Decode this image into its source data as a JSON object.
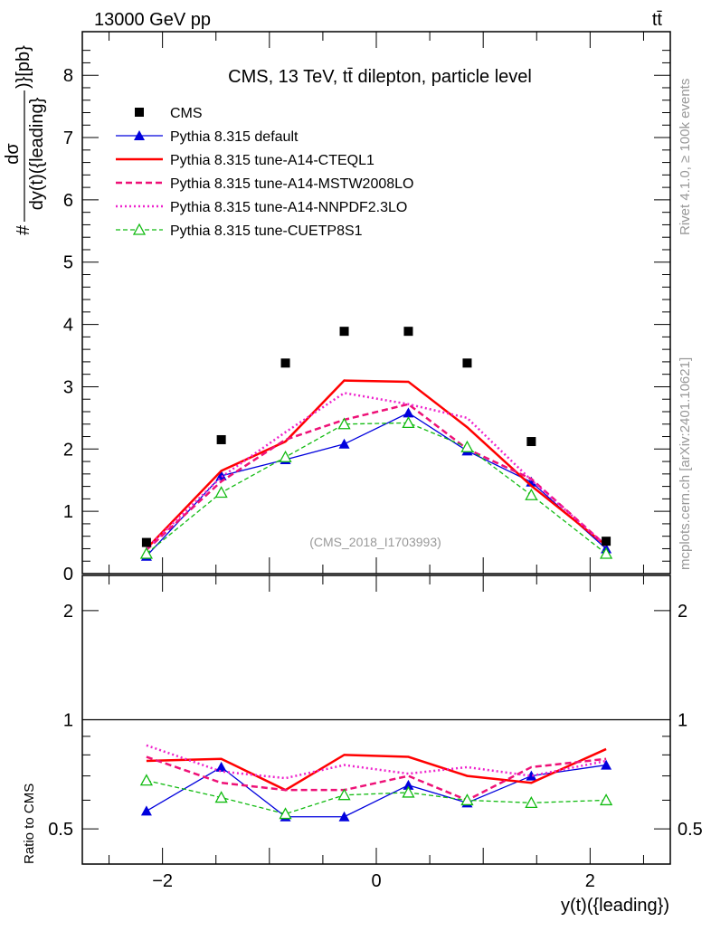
{
  "header": {
    "left": "13000 GeV pp",
    "right": "tt̄"
  },
  "side": {
    "rivet": "Rivet 4.1.0, ≥ 100k events",
    "mcplots": "mcplots.cern.ch [arXiv:2401.10621]"
  },
  "chart_data": {
    "type": "line",
    "title": "CMS, 13 TeV, tt̄ dilepton, particle level",
    "watermark": "(CMS_2018_I1703993)",
    "xlabel": "y(t)({leading})",
    "ylabel": {
      "prefix": "#",
      "numerator": "dσ",
      "denominator": "dy(t)({leading}",
      "suffix": ")}[pb}"
    },
    "ratio_ylabel": "Ratio to CMS",
    "xlim": [
      -2.75,
      2.75
    ],
    "ylim": [
      0,
      8.7
    ],
    "ratio_ylim": [
      0.4,
      2.5
    ],
    "ratio_scale": "log",
    "xticks": [
      -2,
      0,
      2
    ],
    "yticks": [
      0,
      1,
      2,
      3,
      4,
      5,
      6,
      7,
      8
    ],
    "ratio_yticks": [
      0.5,
      1,
      2
    ],
    "legend_position": "top-left",
    "x": [
      -2.15,
      -1.45,
      -0.85,
      -0.3,
      0.3,
      0.85,
      1.45,
      2.15
    ],
    "data": {
      "name": "CMS",
      "color": "#000000",
      "values": [
        0.5,
        2.15,
        3.38,
        3.89,
        3.89,
        3.38,
        2.12,
        0.52
      ]
    },
    "series": [
      {
        "name": "Pythia 8.315 default",
        "color": "#0000dd",
        "dash": "",
        "marker": "triangle-filled",
        "values": [
          0.28,
          1.57,
          1.83,
          2.08,
          2.58,
          1.97,
          1.47,
          0.4
        ],
        "ratio": [
          0.56,
          0.74,
          0.54,
          0.54,
          0.66,
          0.59,
          0.7,
          0.75
        ]
      },
      {
        "name": "Pythia 8.315 tune-A14-CTEQL1",
        "color": "#ff0000",
        "dash": "",
        "marker": "",
        "values": [
          0.4,
          1.65,
          2.12,
          3.1,
          3.08,
          2.35,
          1.41,
          0.45
        ],
        "ratio": [
          0.77,
          0.78,
          0.64,
          0.8,
          0.79,
          0.7,
          0.67,
          0.83
        ]
      },
      {
        "name": "Pythia 8.315 tune-A14-MSTW2008LO",
        "color": "#ee1177",
        "dash": "7,4",
        "marker": "",
        "values": [
          0.38,
          1.48,
          2.15,
          2.47,
          2.72,
          2.0,
          1.52,
          0.45
        ],
        "ratio": [
          0.79,
          0.67,
          0.64,
          0.64,
          0.7,
          0.6,
          0.74,
          0.78
        ]
      },
      {
        "name": "Pythia 8.315 tune-A14-NNPDF2.3LO",
        "color": "#ee22cc",
        "dash": "2,3",
        "marker": "",
        "values": [
          0.4,
          1.55,
          2.27,
          2.9,
          2.72,
          2.5,
          1.5,
          0.45
        ],
        "ratio": [
          0.85,
          0.72,
          0.69,
          0.75,
          0.71,
          0.74,
          0.7,
          0.77
        ]
      },
      {
        "name": "Pythia 8.315 tune-CUETP8S1",
        "color": "#11bb11",
        "dash": "5,3",
        "marker": "triangle-open",
        "values": [
          0.32,
          1.3,
          1.87,
          2.4,
          2.42,
          2.03,
          1.26,
          0.32
        ],
        "ratio": [
          0.68,
          0.61,
          0.55,
          0.62,
          0.63,
          0.6,
          0.59,
          0.6
        ]
      }
    ]
  }
}
